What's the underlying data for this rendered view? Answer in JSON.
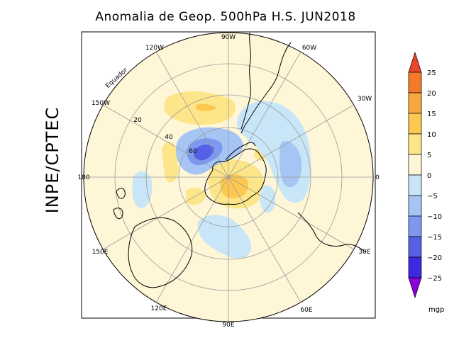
{
  "title": "Anomalia de Geop. 500hPa H.S. JUN2018",
  "institution": "INPE/CPTEC",
  "units": "mgp",
  "longitude_labels": [
    "90W",
    "60W",
    "30W",
    "0",
    "30E",
    "60E",
    "90E",
    "120E",
    "150E",
    "180",
    "150W",
    "120W"
  ],
  "latitude_labels": [
    "20",
    "40",
    "60"
  ],
  "equator_label": "Equador",
  "colorbar": {
    "levels": [
      "25",
      "20",
      "15",
      "10",
      "5",
      "0",
      "−5",
      "−10",
      "−15",
      "−20",
      "−25"
    ],
    "colors": [
      "#e8452d",
      "#f47a2a",
      "#f8a640",
      "#fcc850",
      "#fde68a",
      "#fef6d6",
      "#c9e6f9",
      "#a6c4f4",
      "#7d98ee",
      "#5560e6",
      "#3b2ae0",
      "#8a00d8"
    ]
  },
  "chart_data": {
    "type": "heatmap",
    "projection": "south-polar-stereographic",
    "title": "Anomalia de Geop. 500hPa H.S. JUN2018",
    "variable": "500hPa geopotential height anomaly",
    "units": "mgp",
    "month": "JUN2018",
    "contour_levels": [
      -25,
      -20,
      -15,
      -10,
      -5,
      0,
      5,
      10,
      15,
      20,
      25
    ],
    "features": [
      {
        "name": "negative anomaly south of New Zealand / Ross Sea",
        "sign": "negative",
        "min_approx": -15
      },
      {
        "name": "positive anomaly over East Antarctica",
        "sign": "positive",
        "max_approx": 15
      },
      {
        "name": "negative anomaly over South Atlantic",
        "sign": "negative",
        "min_approx": -10
      },
      {
        "name": "negative anomaly south of Australia",
        "sign": "negative",
        "min_approx": -5
      },
      {
        "name": "positive anomaly over south-east Pacific",
        "sign": "positive",
        "max_approx": 10
      }
    ]
  }
}
